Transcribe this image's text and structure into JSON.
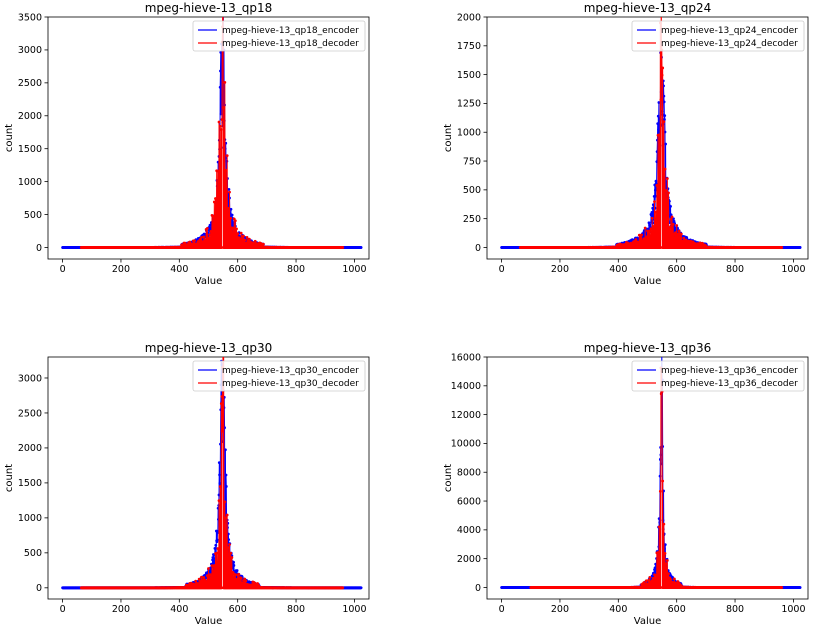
{
  "colors": {
    "encoder": "#0000ff",
    "decoder": "#ff0000"
  },
  "chart_data": [
    {
      "type": "line",
      "title": "mpeg-hieve-13_qp18",
      "xlabel": "Value",
      "ylabel": "count",
      "xlim": [
        -50,
        1050
      ],
      "ylim": [
        -175,
        3500
      ],
      "xticks": [
        0,
        200,
        400,
        600,
        800,
        1000
      ],
      "yticks": [
        0,
        500,
        1000,
        1500,
        2000,
        2500,
        3000,
        3500
      ],
      "legend": "top-right",
      "grid": false,
      "x_data_range": {
        "encoder": [
          0,
          1023
        ],
        "decoder": [
          64,
          960
        ]
      },
      "peak": {
        "x": 548,
        "encoder": 2880,
        "decoder": 3350
      },
      "spread": 10,
      "series": [
        {
          "name": "mpeg-hieve-13_qp18_encoder",
          "color": "#0000ff",
          "marker": "dot"
        },
        {
          "name": "mpeg-hieve-13_qp18_decoder",
          "color": "#ff0000",
          "marker": "dot"
        }
      ]
    },
    {
      "type": "line",
      "title": "mpeg-hieve-13_qp24",
      "xlabel": "Value",
      "ylabel": "count",
      "xlim": [
        -50,
        1050
      ],
      "ylim": [
        -100,
        2000
      ],
      "xticks": [
        0,
        200,
        400,
        600,
        800,
        1000
      ],
      "yticks": [
        0,
        250,
        500,
        750,
        1000,
        1250,
        1500,
        1750,
        2000
      ],
      "legend": "top-right",
      "grid": false,
      "x_data_range": {
        "encoder": [
          0,
          1023
        ],
        "decoder": [
          64,
          960
        ]
      },
      "peak": {
        "x": 548,
        "encoder": 1650,
        "decoder": 1750
      },
      "spread": 11,
      "series": [
        {
          "name": "mpeg-hieve-13_qp24_encoder",
          "color": "#0000ff",
          "marker": "dot"
        },
        {
          "name": "mpeg-hieve-13_qp24_decoder",
          "color": "#ff0000",
          "marker": "dot"
        }
      ]
    },
    {
      "type": "line",
      "title": "mpeg-hieve-13_qp30",
      "xlabel": "Value",
      "ylabel": "count",
      "xlim": [
        -50,
        1050
      ],
      "ylim": [
        -160,
        3300
      ],
      "xticks": [
        0,
        200,
        400,
        600,
        800,
        1000
      ],
      "yticks": [
        0,
        500,
        1000,
        1500,
        2000,
        2500,
        3000
      ],
      "legend": "top-right",
      "grid": false,
      "x_data_range": {
        "encoder": [
          0,
          1023
        ],
        "decoder": [
          64,
          960
        ]
      },
      "peak": {
        "x": 548,
        "encoder": 2850,
        "decoder": 3150
      },
      "spread": 9,
      "series": [
        {
          "name": "mpeg-hieve-13_qp30_encoder",
          "color": "#0000ff",
          "marker": "dot"
        },
        {
          "name": "mpeg-hieve-13_qp30_decoder",
          "color": "#ff0000",
          "marker": "dot"
        }
      ]
    },
    {
      "type": "line",
      "title": "mpeg-hieve-13_qp36",
      "xlabel": "Value",
      "ylabel": "count",
      "xlim": [
        -50,
        1050
      ],
      "ylim": [
        -800,
        16000
      ],
      "xticks": [
        0,
        200,
        400,
        600,
        800,
        1000
      ],
      "yticks": [
        0,
        2000,
        4000,
        6000,
        8000,
        10000,
        12000,
        14000,
        16000
      ],
      "legend": "top-right",
      "grid": false,
      "x_data_range": {
        "encoder": [
          0,
          1023
        ],
        "decoder": [
          100,
          960
        ]
      },
      "peak": {
        "x": 548,
        "encoder": 13500,
        "decoder": 15000
      },
      "spread": 5,
      "series": [
        {
          "name": "mpeg-hieve-13_qp36_encoder",
          "color": "#0000ff",
          "marker": "dot"
        },
        {
          "name": "mpeg-hieve-13_qp36_decoder",
          "color": "#ff0000",
          "marker": "dot"
        }
      ]
    }
  ]
}
